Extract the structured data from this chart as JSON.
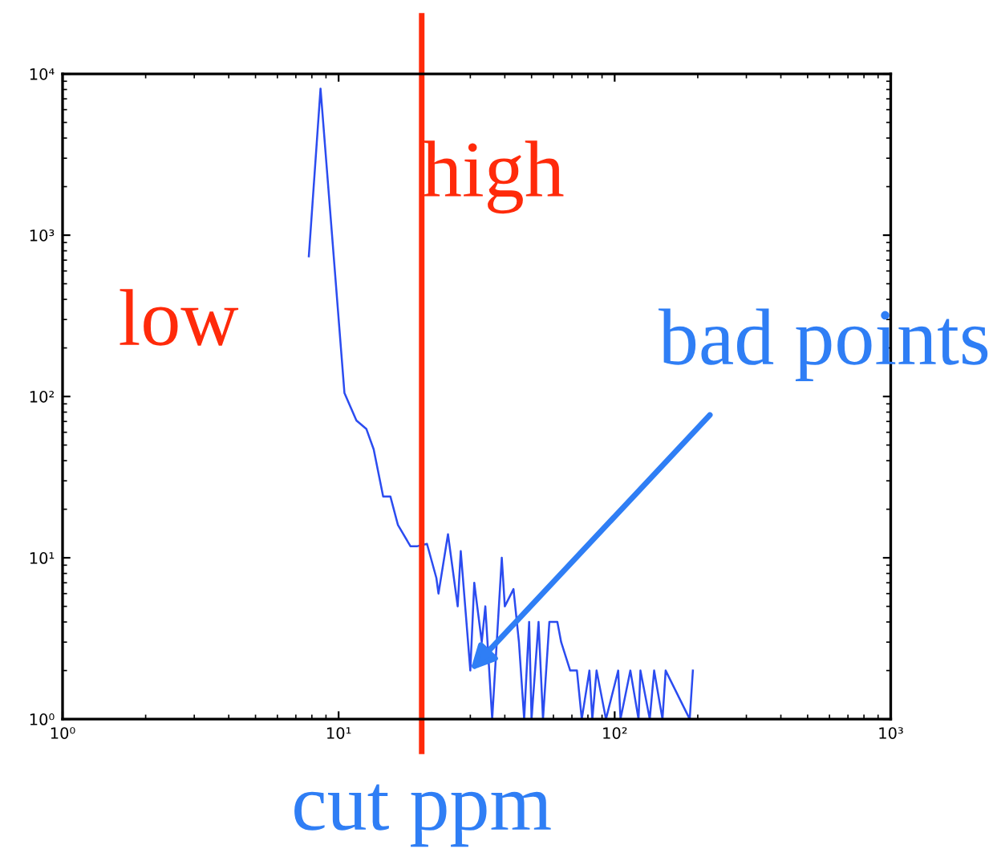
{
  "chart_data": {
    "type": "line",
    "log": "xy",
    "grid": false,
    "marker": "none",
    "line_style": "solid",
    "xlim": [
      1,
      1000
    ],
    "ylim": [
      1,
      10000
    ],
    "xticks": [
      {
        "value": 1,
        "label": "10⁰"
      },
      {
        "value": 10,
        "label": "10¹"
      },
      {
        "value": 100,
        "label": "10²"
      },
      {
        "value": 1000,
        "label": "10³"
      }
    ],
    "yticks": [
      {
        "value": 1,
        "label": "10⁰"
      },
      {
        "value": 10,
        "label": "10¹"
      },
      {
        "value": 100,
        "label": "10²"
      },
      {
        "value": 1000,
        "label": "10³"
      },
      {
        "value": 10000,
        "label": "10⁴"
      }
    ],
    "series": [
      {
        "color": "#2b4cf0",
        "x": [
          7.8,
          8.6,
          10.5,
          11.6,
          12.6,
          13.4,
          14.5,
          15.4,
          16.4,
          18.2,
          19.3,
          20.9,
          22.6,
          23,
          24.9,
          27,
          27.7,
          30,
          31,
          33,
          34,
          36,
          39,
          40,
          43,
          45,
          47,
          49,
          50,
          53,
          55,
          58,
          62,
          64,
          69,
          73,
          76,
          81,
          83,
          86,
          93,
          103,
          105,
          114,
          122,
          124,
          134,
          139,
          149,
          153,
          187,
          192
        ],
        "values": [
          740,
          8100,
          105,
          71,
          63,
          47,
          24,
          24,
          16,
          11.8,
          11.8,
          12.2,
          7.5,
          6,
          14,
          5,
          11,
          2,
          7,
          3,
          5,
          1,
          10,
          5,
          6.4,
          3,
          1,
          4,
          1,
          4,
          1,
          4,
          4,
          3,
          2,
          2,
          1,
          2,
          1,
          2,
          1,
          2,
          1,
          2,
          1,
          2,
          1,
          2,
          1,
          2,
          1,
          2
        ]
      }
    ],
    "ref_lines": [
      {
        "axis": "x",
        "value": 20,
        "label": "cut ppm",
        "color": "#ff2a0a"
      }
    ],
    "annotations": [
      "low",
      "high",
      {
        "text": "bad points",
        "x": 30,
        "y": 2
      }
    ]
  }
}
